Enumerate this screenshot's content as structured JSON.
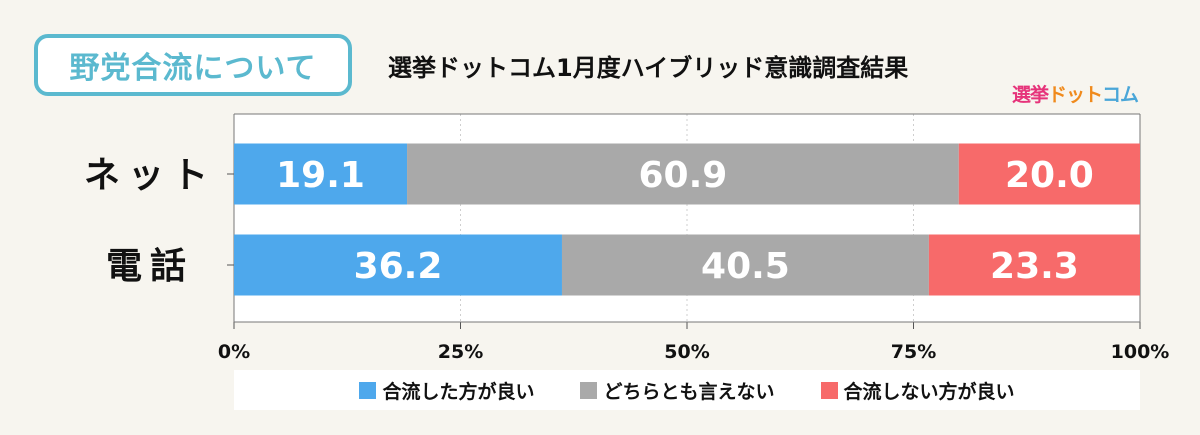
{
  "header": {
    "tag_label": "野党合流について",
    "title": "選挙ドットコム1月度ハイブリッド意識調査結果",
    "logo": {
      "part1": "選挙",
      "part2": "ドット",
      "part3": "コム"
    }
  },
  "chart_data": {
    "type": "bar",
    "orientation": "horizontal",
    "stacked": true,
    "percent": true,
    "title": "選挙ドットコム1月度ハイブリッド意識調査結果",
    "categories": [
      "ネット",
      "電話"
    ],
    "series": [
      {
        "name": "合流した方が良い",
        "values": [
          19.1,
          36.2
        ],
        "color": "#4ea8ec"
      },
      {
        "name": "どちらとも言えない",
        "values": [
          60.9,
          40.5
        ],
        "color": "#a9a9a9"
      },
      {
        "name": "合流しない方が良い",
        "values": [
          20.0,
          23.3
        ],
        "color": "#f76a6a"
      }
    ],
    "xlim": [
      0,
      100
    ],
    "xticks": [
      0,
      25,
      50,
      75,
      100
    ],
    "xtick_labels": [
      "0%",
      "25%",
      "50%",
      "75%",
      "100%"
    ],
    "grid": true,
    "legend_position": "bottom"
  }
}
